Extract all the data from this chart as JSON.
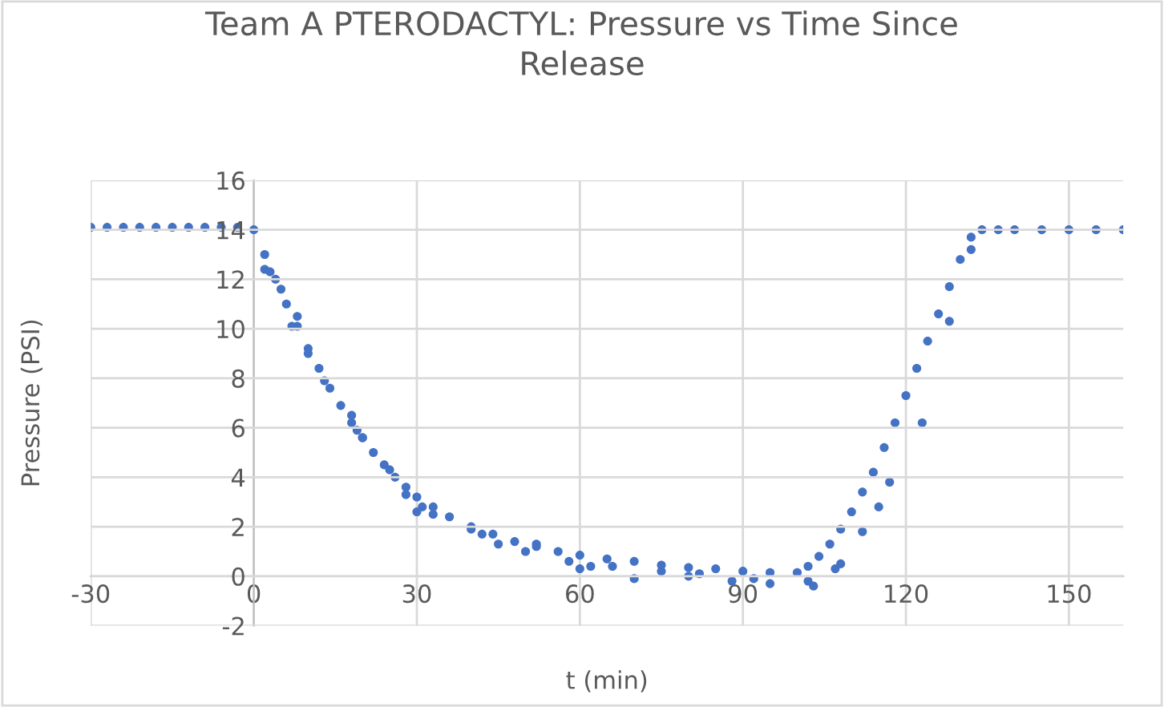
{
  "chart_data": {
    "type": "scatter",
    "title": "Team A PTERODACTYL: Pressure vs Time Since Release",
    "xlabel": "t (min)",
    "ylabel": "Pressure (PSI)",
    "xlim": [
      -30,
      160
    ],
    "ylim": [
      -2,
      16
    ],
    "xticks": [
      -30,
      0,
      30,
      60,
      90,
      120,
      150
    ],
    "yticks": [
      -2,
      0,
      2,
      4,
      6,
      8,
      10,
      12,
      14,
      16
    ],
    "grid": true,
    "marker": "circle",
    "series": [
      {
        "color": "#4472c4",
        "x": [
          -30,
          -27,
          -24,
          -21,
          -18,
          -15,
          -12,
          -9,
          -6,
          -3,
          0,
          2,
          4,
          6,
          8,
          10,
          12,
          14,
          16,
          18,
          20,
          22,
          24,
          26,
          28,
          30,
          33,
          36,
          40,
          44,
          48,
          52,
          56,
          60,
          65,
          70,
          75,
          80,
          85,
          90,
          95,
          100,
          102,
          104,
          106,
          108,
          110,
          112,
          114,
          116,
          118,
          120,
          122,
          124,
          126,
          128,
          130,
          132,
          134,
          137,
          140,
          145,
          150,
          155,
          160,
          2,
          3,
          5,
          7,
          8,
          10,
          13,
          18,
          19,
          20,
          25,
          28,
          30,
          31,
          33,
          40,
          42,
          45,
          50,
          52,
          58,
          60,
          62,
          66,
          70,
          75,
          80,
          82,
          88,
          92,
          95,
          102,
          103,
          107,
          108,
          112,
          115,
          117,
          123,
          128,
          132
        ],
        "values": [
          14.1,
          14.1,
          14.1,
          14.1,
          14.1,
          14.1,
          14.1,
          14.1,
          14.1,
          14.1,
          14.0,
          13.0,
          12.0,
          11.0,
          10.1,
          9.2,
          8.4,
          7.6,
          6.9,
          6.2,
          5.6,
          5.0,
          4.5,
          4.0,
          3.6,
          3.2,
          2.8,
          2.4,
          2.0,
          1.7,
          1.4,
          1.2,
          1.0,
          0.85,
          0.7,
          0.6,
          0.45,
          0.35,
          0.3,
          0.2,
          0.15,
          0.15,
          0.4,
          0.8,
          1.3,
          1.9,
          2.6,
          3.4,
          4.2,
          5.2,
          6.2,
          7.3,
          8.4,
          9.5,
          10.6,
          11.7,
          12.8,
          13.7,
          14.0,
          14.0,
          14.0,
          14.0,
          14.0,
          14.0,
          14.0,
          12.4,
          12.3,
          11.6,
          10.1,
          10.5,
          9.0,
          7.9,
          6.5,
          5.9,
          5.6,
          4.3,
          3.3,
          2.6,
          2.8,
          2.5,
          1.9,
          1.7,
          1.3,
          1.0,
          1.3,
          0.6,
          0.3,
          0.4,
          0.4,
          -0.1,
          0.2,
          0.0,
          0.1,
          -0.2,
          -0.1,
          -0.3,
          -0.2,
          -0.4,
          0.3,
          0.5,
          1.8,
          2.8,
          3.8,
          6.2,
          10.3,
          13.2
        ]
      }
    ]
  }
}
